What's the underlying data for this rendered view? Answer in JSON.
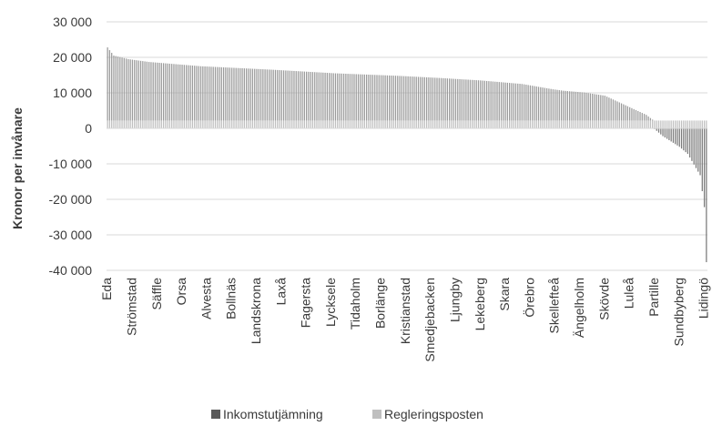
{
  "chart_data": {
    "type": "bar",
    "stacked": true,
    "ylabel": "Kronor per invånare",
    "xlabel": "",
    "ylim": [
      -40000,
      30000
    ],
    "y_ticks": [
      30000,
      20000,
      10000,
      0,
      -10000,
      -20000,
      -30000,
      -40000
    ],
    "y_tick_labels": [
      "30 000",
      "20 000",
      "10 000",
      "0",
      "-10 000",
      "-20 000",
      "-30 000",
      "-40 000"
    ],
    "grid": true,
    "legend_position": "bottom",
    "category_labels": [
      "Eda",
      "Strömstad",
      "Säffle",
      "Orsa",
      "Alvesta",
      "Bollnäs",
      "Landskrona",
      "Laxå",
      "Fagersta",
      "Lycksele",
      "Tidaholm",
      "Borlänge",
      "Kristianstad",
      "Smedjebacken",
      "Ljungby",
      "Lekeberg",
      "Skara",
      "Örebro",
      "Skellefteå",
      "Ängelholm",
      "Skövde",
      "Luleå",
      "Partille",
      "Sundbyberg",
      "Lidingö"
    ],
    "label_every": 12,
    "num_categories": 290,
    "breakpoints_x": [
      0,
      3,
      10,
      20,
      45,
      80,
      110,
      140,
      160,
      180,
      200,
      205,
      215,
      220,
      230,
      240,
      250,
      260,
      264,
      268,
      272,
      276,
      280,
      284,
      286,
      288,
      289
    ],
    "breakpoints_total": [
      22800,
      20500,
      19500,
      18700,
      17500,
      16500,
      15500,
      14800,
      14200,
      13500,
      12500,
      12000,
      11000,
      10600,
      10100,
      9200,
      6500,
      3800,
      2000,
      0,
      -1500,
      -3000,
      -5000,
      -9000,
      -11000,
      -20000,
      -35500
    ],
    "series": [
      {
        "name": "Inkomstutjämning",
        "color": "#595959",
        "pattern": "derived as total minus Regleringsposten"
      },
      {
        "name": "Regleringsposten",
        "color": "#bfbfbf",
        "value_constant": 2200
      }
    ]
  }
}
